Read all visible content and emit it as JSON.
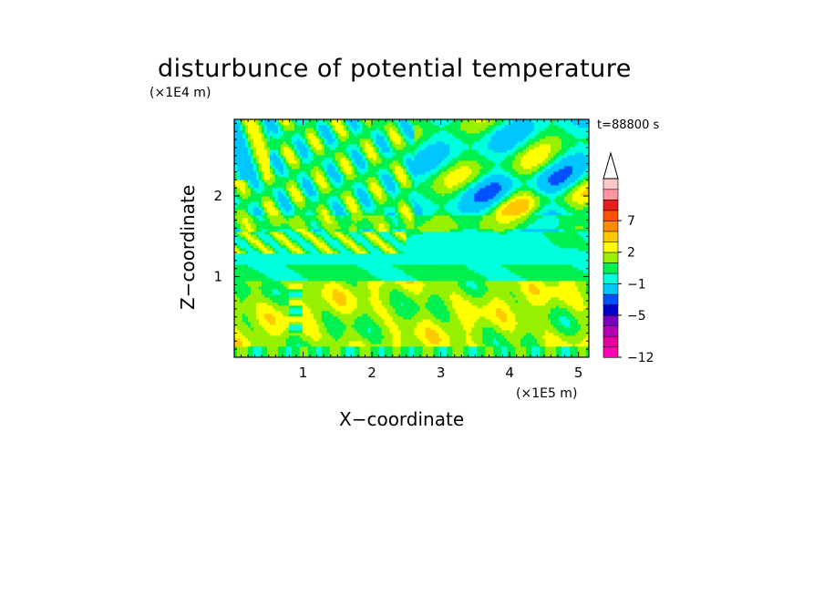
{
  "chart_data": {
    "type": "heatmap",
    "title": "disturbunce of potential temperature",
    "xlabel": "X−coordinate",
    "ylabel": "Z−coordinate",
    "x_unit": "(×1E5 m)",
    "y_unit": "(×1E4 m)",
    "annotation": "t=88800 s",
    "xlim": [
      0,
      5.15
    ],
    "ylim": [
      0,
      2.95
    ],
    "x_ticks": [
      {
        "value": 1,
        "label": "1"
      },
      {
        "value": 2,
        "label": "2"
      },
      {
        "value": 3,
        "label": "3"
      },
      {
        "value": 4,
        "label": "4"
      },
      {
        "value": 5,
        "label": "5"
      }
    ],
    "y_ticks": [
      {
        "value": 1,
        "label": "1"
      },
      {
        "value": 2,
        "label": "2"
      }
    ],
    "colorbar": {
      "levels": [
        -12,
        -10,
        -8,
        -7,
        -5,
        -4,
        -3,
        -1,
        0,
        1,
        2,
        3,
        5,
        7,
        8,
        9,
        12
      ],
      "labeled": [
        {
          "value": -12,
          "label": "−12"
        },
        {
          "value": -5,
          "label": "−5"
        },
        {
          "value": -1,
          "label": "−1"
        },
        {
          "value": 2,
          "label": "2"
        },
        {
          "value": 7,
          "label": "7"
        }
      ],
      "colors": [
        "#ff00b4",
        "#e600a0",
        "#b400b4",
        "#7800be",
        "#0000c8",
        "#0050ff",
        "#00c8ff",
        "#00ffdc",
        "#00f050",
        "#96f000",
        "#ffff00",
        "#ffc800",
        "#ff8c00",
        "#ff5000",
        "#e61e1e",
        "#ff96a0",
        "#ffc8c8"
      ]
    },
    "field": {
      "description_levels": "value field drawn as filled contours (K)",
      "regions": [
        {
          "zone": "lower layer",
          "z_range": [
            0,
            0.9
          ],
          "value": 2
        },
        {
          "zone": "boundary",
          "z_range": [
            0.9,
            1.1
          ],
          "value": 0.5
        },
        {
          "zone": "mid layer",
          "z_range": [
            1.1,
            1.6
          ],
          "value": -0.5
        },
        {
          "zone": "upper wave region",
          "z_range": [
            1.6,
            2.95
          ],
          "value": 0
        }
      ]
    }
  }
}
